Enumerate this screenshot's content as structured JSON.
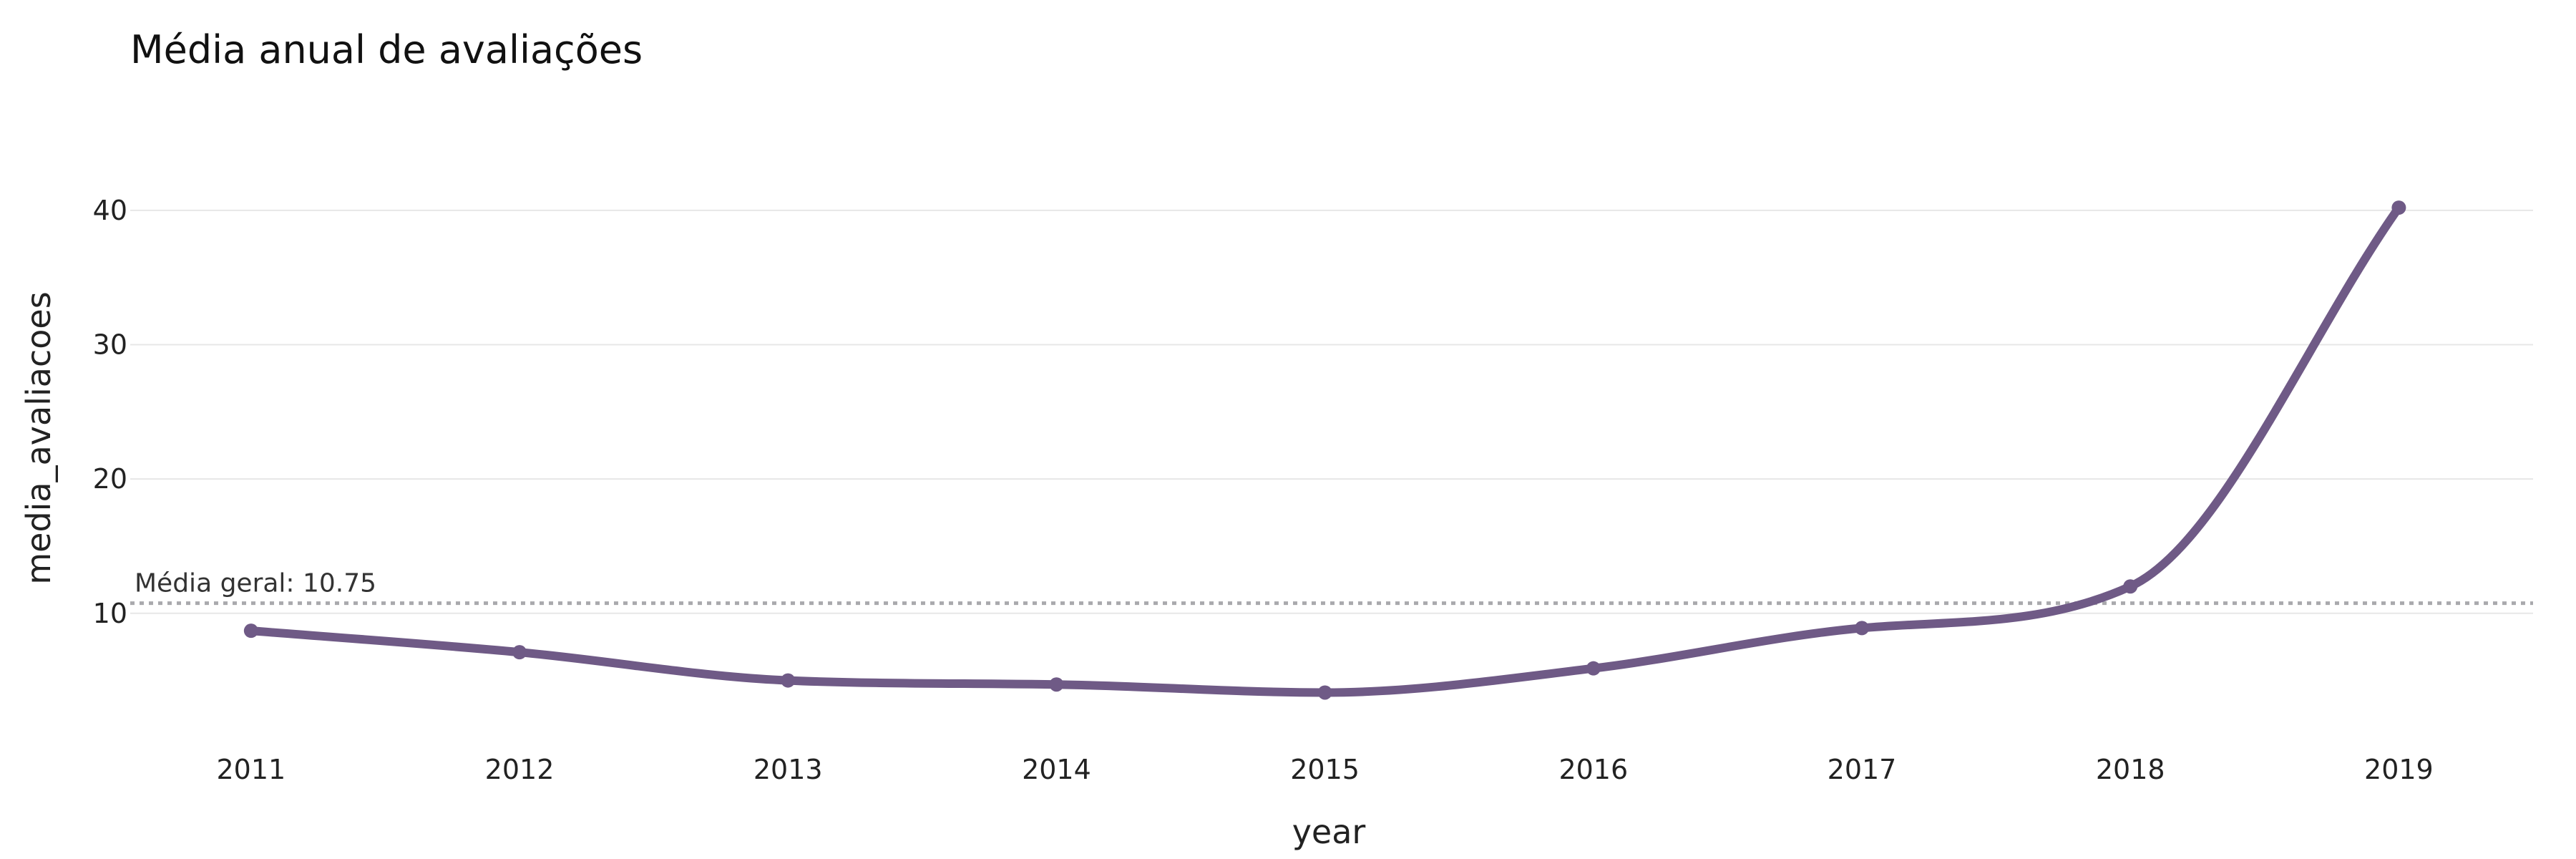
{
  "chart_data": {
    "type": "line",
    "title": "Média anual de avaliações",
    "xlabel": "year",
    "ylabel": "media_avaliacoes",
    "x": [
      2011,
      2012,
      2013,
      2014,
      2015,
      2016,
      2017,
      2018,
      2019
    ],
    "x_tick_labels": [
      "2011",
      "2012",
      "2013",
      "2014",
      "2015",
      "2016",
      "2017",
      "2018",
      "2019"
    ],
    "series": [
      {
        "values": [
          8.7,
          7.1,
          5.0,
          4.7,
          4.1,
          5.9,
          8.9,
          12.0,
          40.2
        ],
        "color": "#6f5a86"
      }
    ],
    "y_ticks": [
      10,
      20,
      30,
      40
    ],
    "y_tick_labels": [
      "10",
      "20",
      "30",
      "40"
    ],
    "ylim": [
      1.3,
      45
    ],
    "xlim": [
      2010.55,
      2019.5
    ],
    "grid": true,
    "reference_line": {
      "value": 10.75,
      "label": "Média geral: 10.75",
      "color": "#a9a9ad",
      "style": "dotted"
    }
  }
}
